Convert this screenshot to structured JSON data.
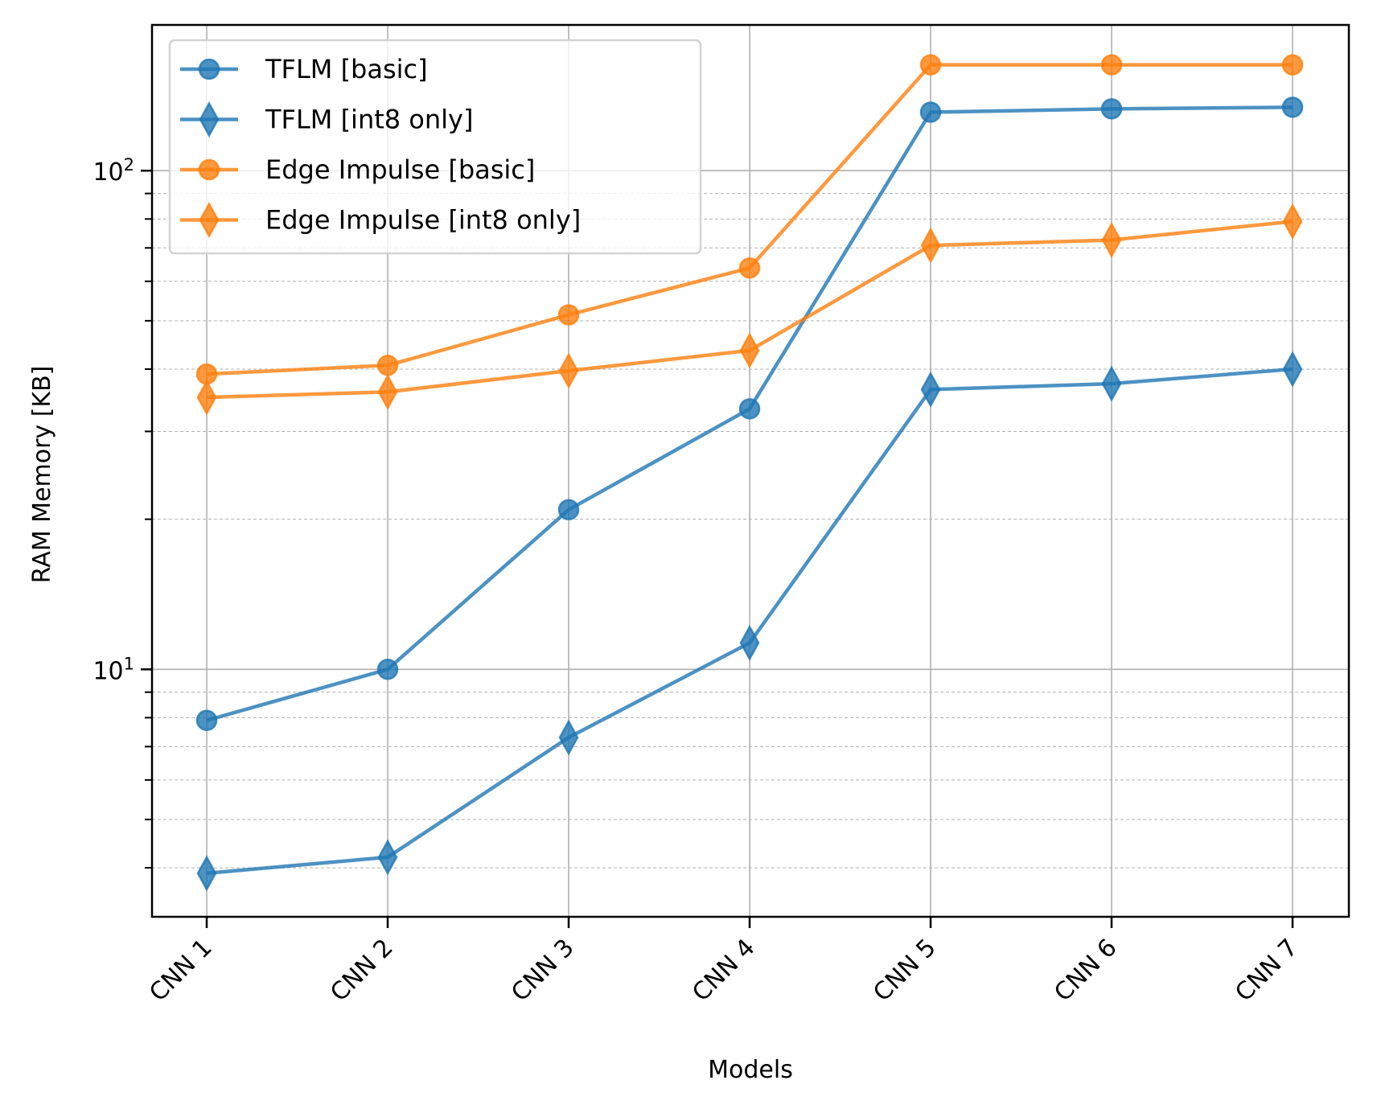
{
  "chart_data": {
    "type": "line",
    "title": "",
    "xlabel": "Models",
    "ylabel": "RAM Memory [KB]",
    "yscale": "log",
    "ylim": [
      3.19,
      196
    ],
    "y_major_ticks": [
      {
        "value": 10,
        "label_base": "10",
        "label_exp": "1"
      },
      {
        "value": 100,
        "label_base": "10",
        "label_exp": "2"
      }
    ],
    "y_minor_ticks": [
      4,
      5,
      6,
      7,
      8,
      9,
      20,
      30,
      40,
      50,
      60,
      70,
      80,
      90
    ],
    "grid": {
      "major": true,
      "minor_y": true
    },
    "categories": [
      "CNN 1",
      "CNN 2",
      "CNN 3",
      "CNN 4",
      "CNN 5",
      "CNN 6",
      "CNN 7"
    ],
    "legend_position": "upper-left",
    "series": [
      {
        "name": "TFLM [basic]",
        "color": "#1f77b4",
        "marker": "circle",
        "values": [
          7.9,
          10.0,
          20.9,
          33.3,
          131,
          133,
          134
        ]
      },
      {
        "name": "TFLM [int8 only]",
        "color": "#1f77b4",
        "marker": "diamond",
        "values": [
          3.9,
          4.2,
          7.3,
          11.3,
          36.4,
          37.4,
          40.0
        ]
      },
      {
        "name": "Edge Impulse [basic]",
        "color": "#ff7f0e",
        "marker": "circle",
        "values": [
          39.1,
          40.7,
          51.4,
          63.8,
          163,
          163,
          163
        ]
      },
      {
        "name": "Edge Impulse [int8 only]",
        "color": "#ff7f0e",
        "marker": "diamond",
        "values": [
          35.1,
          36.0,
          39.7,
          43.6,
          70.8,
          72.6,
          79.1
        ]
      }
    ]
  }
}
